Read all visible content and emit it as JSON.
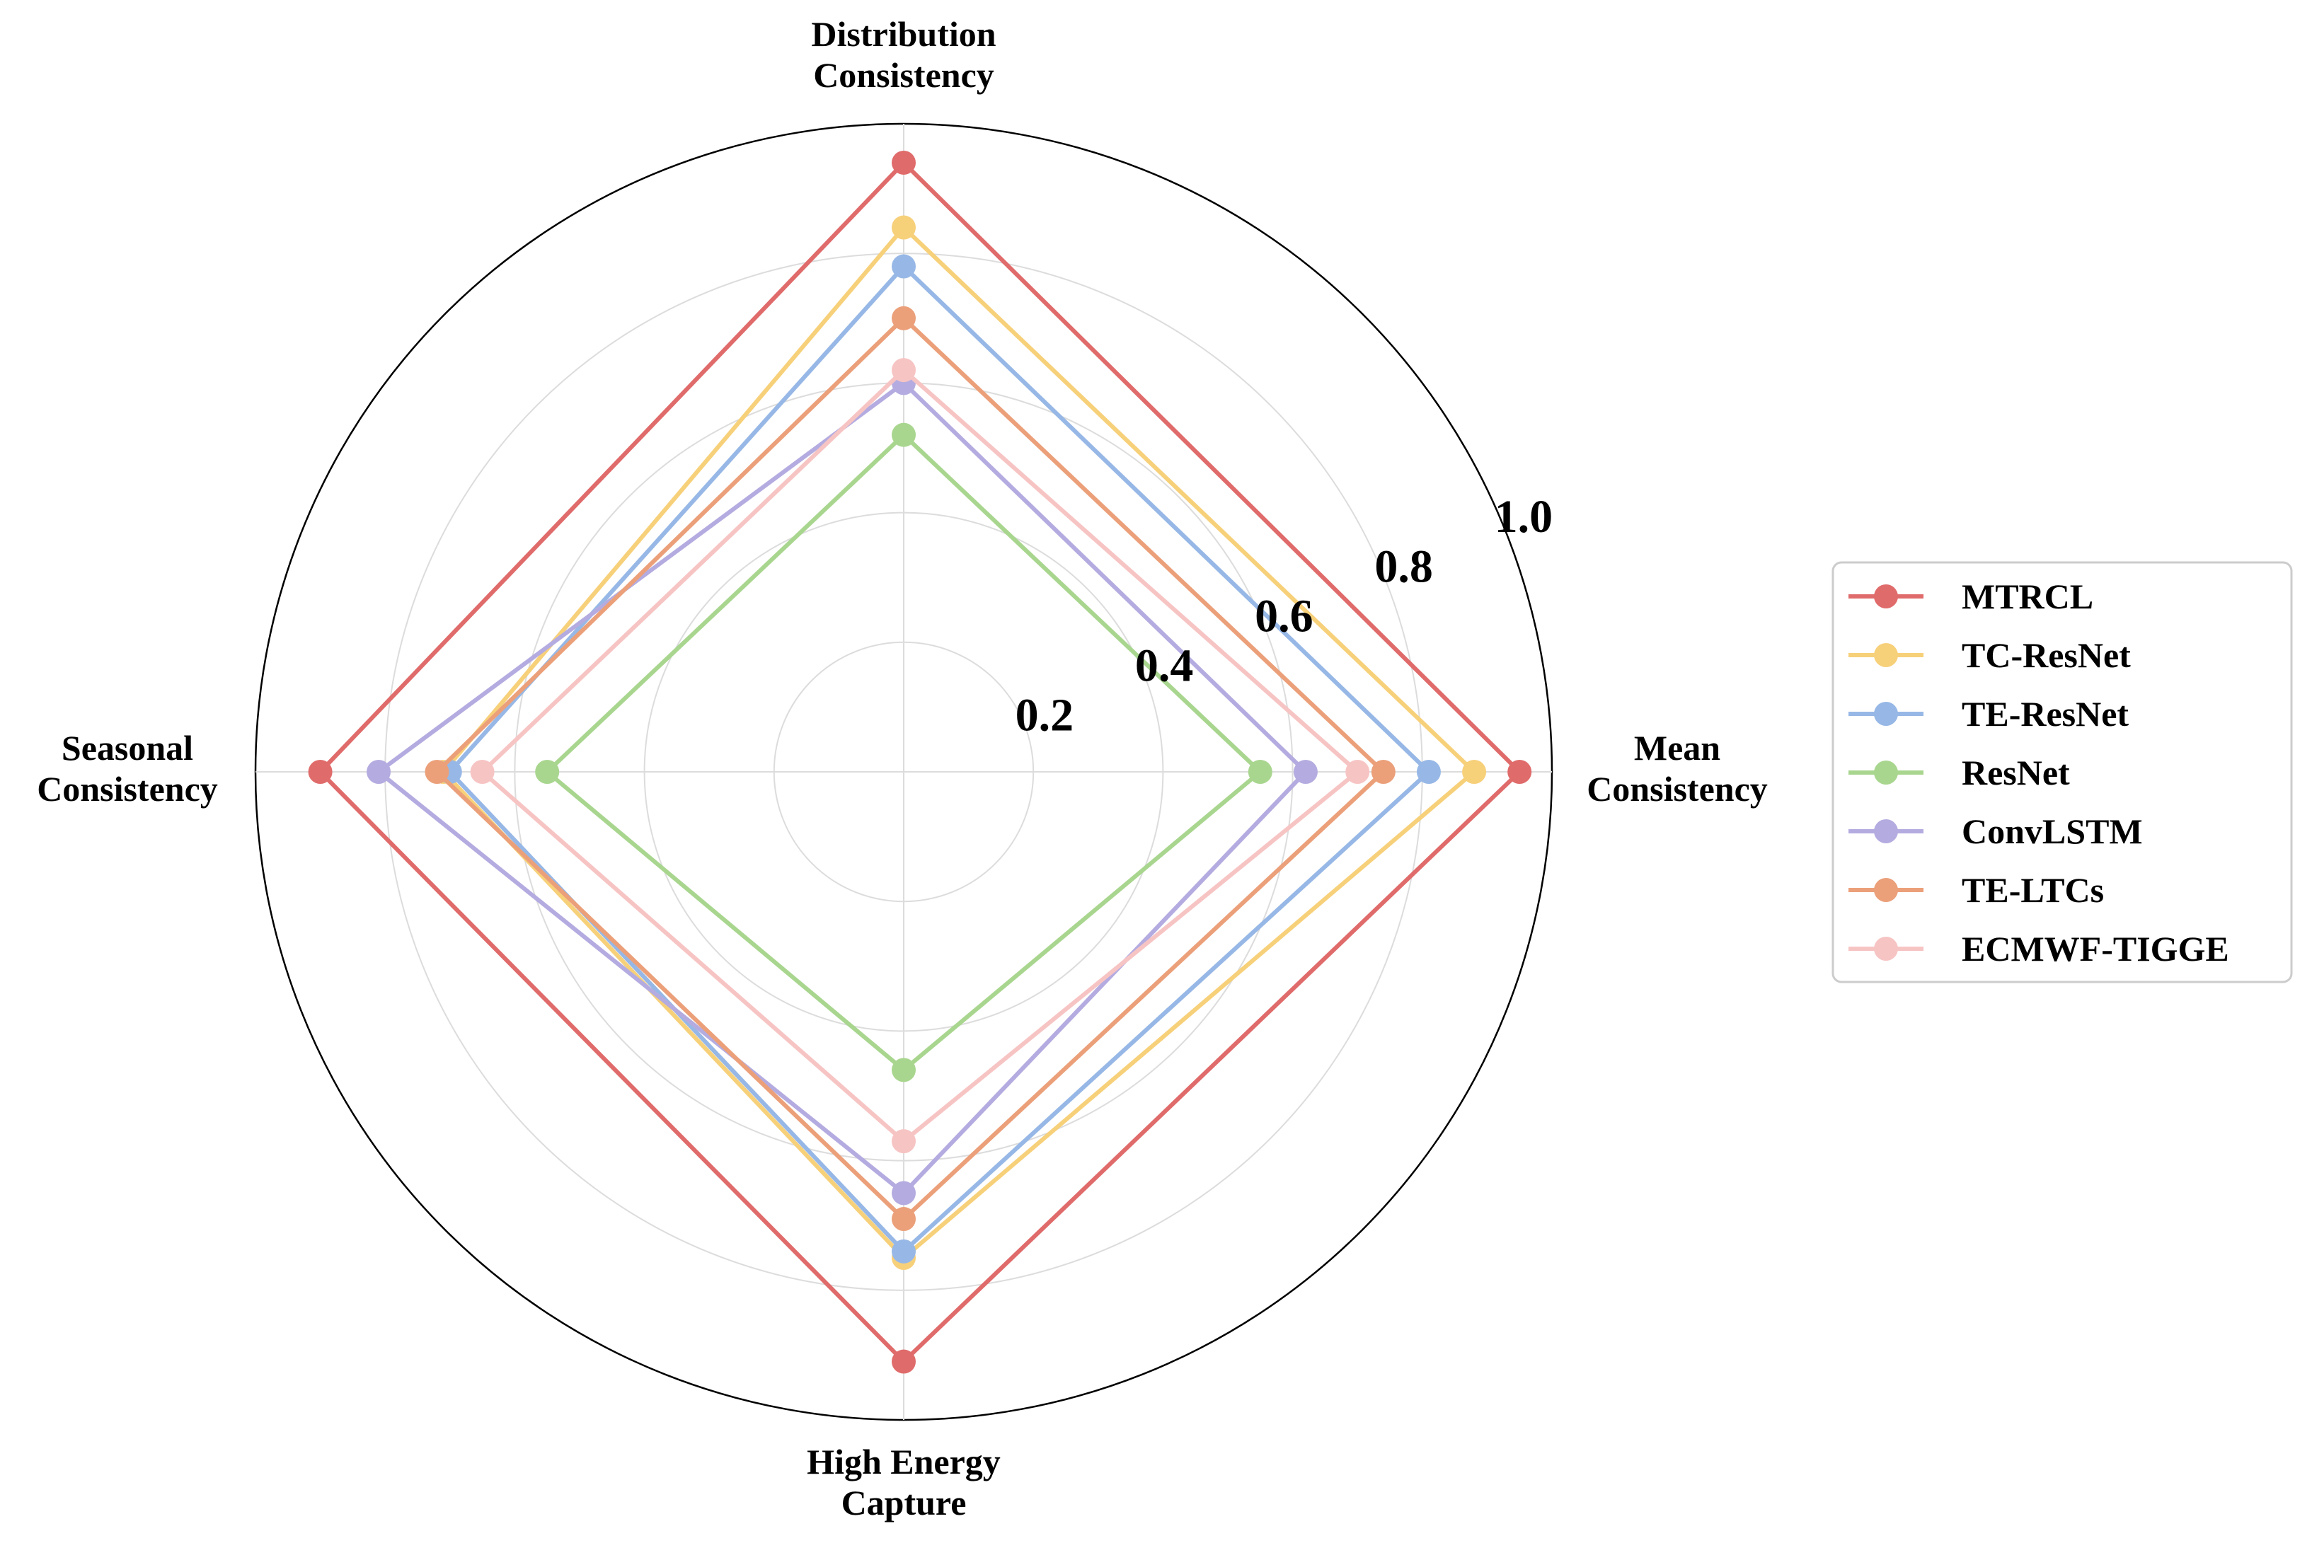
{
  "chart_data": {
    "type": "radar",
    "axes": [
      {
        "label": [
          "Mean",
          "Consistency"
        ]
      },
      {
        "label": [
          "Distribution",
          "Consistency"
        ]
      },
      {
        "label": [
          "Seasonal",
          "Consistency"
        ]
      },
      {
        "label": [
          "High Energy",
          "Capture"
        ]
      }
    ],
    "rlim": [
      0,
      1.0
    ],
    "r_ticks": [
      0.2,
      0.4,
      0.6,
      0.8,
      1.0
    ],
    "r_tick_labels": [
      "0.2",
      "0.4",
      "0.6",
      "0.8",
      "1.0"
    ],
    "grid": true,
    "legend_position": "right",
    "series": [
      {
        "name": "MTRCL",
        "color": "#e06b6b",
        "values": [
          0.95,
          0.94,
          0.9,
          0.91
        ]
      },
      {
        "name": "TC-ResNet",
        "color": "#f7d07a",
        "values": [
          0.88,
          0.84,
          0.71,
          0.75
        ]
      },
      {
        "name": "TE-ResNet",
        "color": "#97b8e6",
        "values": [
          0.81,
          0.78,
          0.7,
          0.74
        ]
      },
      {
        "name": "ResNet",
        "color": "#a9d68f",
        "values": [
          0.55,
          0.52,
          0.55,
          0.46
        ]
      },
      {
        "name": "ConvLSTM",
        "color": "#b4ace0",
        "values": [
          0.62,
          0.6,
          0.81,
          0.65
        ]
      },
      {
        "name": "TE-LTCs",
        "color": "#eba07a",
        "values": [
          0.74,
          0.7,
          0.72,
          0.69
        ]
      },
      {
        "name": "ECMWF-TIGGE",
        "color": "#f7c4c4",
        "values": [
          0.7,
          0.62,
          0.65,
          0.57
        ]
      }
    ]
  }
}
